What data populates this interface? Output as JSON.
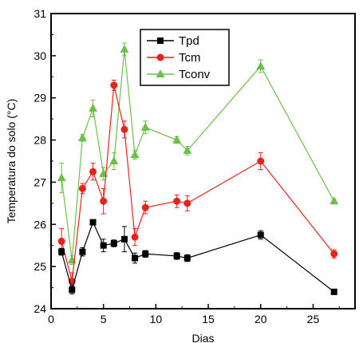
{
  "chart_data": {
    "type": "line",
    "xlabel": "Dias",
    "ylabel": "Temperatura do solo (°C)",
    "xlim": [
      0,
      29
    ],
    "ylim": [
      24,
      31
    ],
    "xticks": [
      0,
      5,
      10,
      15,
      20,
      25
    ],
    "yticks": [
      24,
      25,
      26,
      27,
      28,
      29,
      30,
      31
    ],
    "grid": false,
    "legend_position": "top-center",
    "x": [
      1,
      2,
      3,
      4,
      5,
      6,
      7,
      8,
      9,
      12,
      13,
      20,
      27
    ],
    "series": [
      {
        "name": "Tpd",
        "color": "#000000",
        "marker": "square",
        "values": [
          25.35,
          24.45,
          25.35,
          26.05,
          25.5,
          25.55,
          25.65,
          25.2,
          25.3,
          25.25,
          25.2,
          25.75,
          24.4
        ],
        "errors": [
          0.08,
          0.1,
          0.1,
          0.06,
          0.15,
          0.08,
          0.3,
          0.12,
          0.08,
          0.08,
          0.08,
          0.1,
          0.05
        ]
      },
      {
        "name": "Tcm",
        "color": "#e8221d",
        "marker": "circle",
        "values": [
          25.6,
          24.65,
          26.85,
          27.25,
          26.55,
          29.3,
          28.25,
          25.7,
          26.4,
          26.55,
          26.5,
          27.5,
          25.3
        ],
        "errors": [
          0.3,
          0.2,
          0.12,
          0.2,
          0.3,
          0.12,
          0.2,
          0.2,
          0.15,
          0.15,
          0.18,
          0.2,
          0.1
        ]
      },
      {
        "name": "Tconv",
        "color": "#6cc04a",
        "marker": "triangle",
        "values": [
          27.1,
          25.15,
          28.05,
          28.75,
          27.2,
          27.5,
          30.15,
          27.65,
          28.3,
          28.0,
          27.75,
          29.75,
          26.55
        ],
        "errors": [
          0.35,
          0.1,
          0.08,
          0.2,
          0.15,
          0.2,
          0.15,
          0.1,
          0.15,
          0.08,
          0.1,
          0.15,
          0.06
        ]
      }
    ]
  }
}
